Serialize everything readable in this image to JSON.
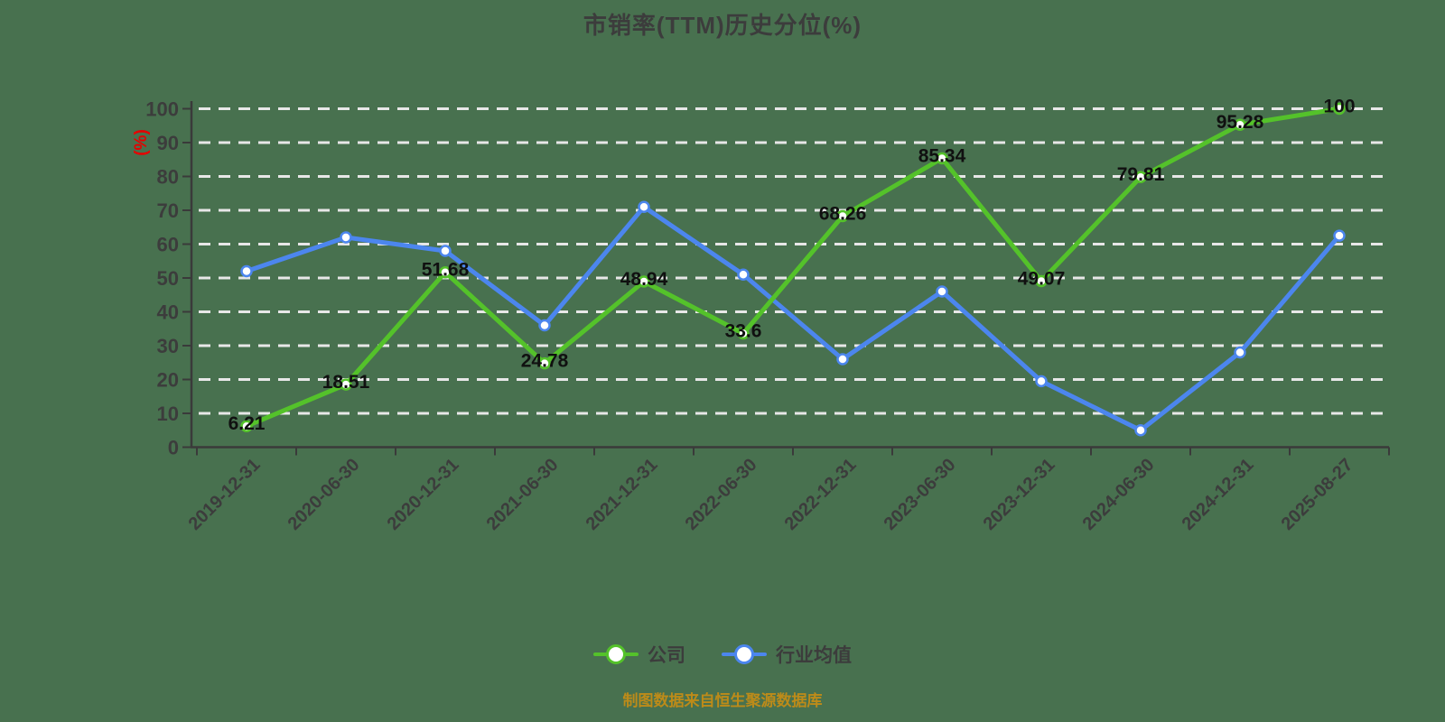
{
  "title": "市销率(TTM)历史分位(%)",
  "y_axis_unit": "(%)",
  "footer": "制图数据来自恒生聚源数据库",
  "colors": {
    "background": "#48714F",
    "company_line": "#54c22a",
    "industry_line": "#4c86ee",
    "gridline": "#e7e7e7",
    "axis": "#3a3a3a",
    "tick_label": "#3c3c3c",
    "data_label": "#101010",
    "title_text": "#3c3c3c",
    "footer_text": "#bd8b19",
    "y_unit_text": "#e60000",
    "marker_fill": "#ffffff"
  },
  "legend": [
    {
      "label": "公司",
      "color": "#54c22a"
    },
    {
      "label": "行业均值",
      "color": "#4c86ee"
    }
  ],
  "chart_data": {
    "type": "line",
    "title": "市销率(TTM)历史分位(%)",
    "xlabel": "",
    "ylabel": "(%)",
    "ylim": [
      0,
      100
    ],
    "y_ticks": [
      0,
      10,
      20,
      30,
      40,
      50,
      60,
      70,
      80,
      90,
      100
    ],
    "grid": "horizontal-dashed",
    "legend_position": "bottom",
    "categories": [
      "2019-12-31",
      "2020-06-30",
      "2020-12-31",
      "2021-06-30",
      "2021-12-31",
      "2022-06-30",
      "2022-12-31",
      "2023-06-30",
      "2023-12-31",
      "2024-06-30",
      "2024-12-31",
      "2025-08-27"
    ],
    "series": [
      {
        "name": "公司",
        "color": "#54c22a",
        "values": [
          6.21,
          18.51,
          51.68,
          24.78,
          48.94,
          33.6,
          68.26,
          85.34,
          49.07,
          79.81,
          95.28,
          100
        ],
        "data_labels_shown": true
      },
      {
        "name": "行业均值",
        "color": "#4c86ee",
        "values": [
          52,
          62,
          58,
          36,
          71,
          51,
          26,
          46,
          19.5,
          5,
          28,
          62.5
        ],
        "data_labels_shown": false
      }
    ]
  }
}
